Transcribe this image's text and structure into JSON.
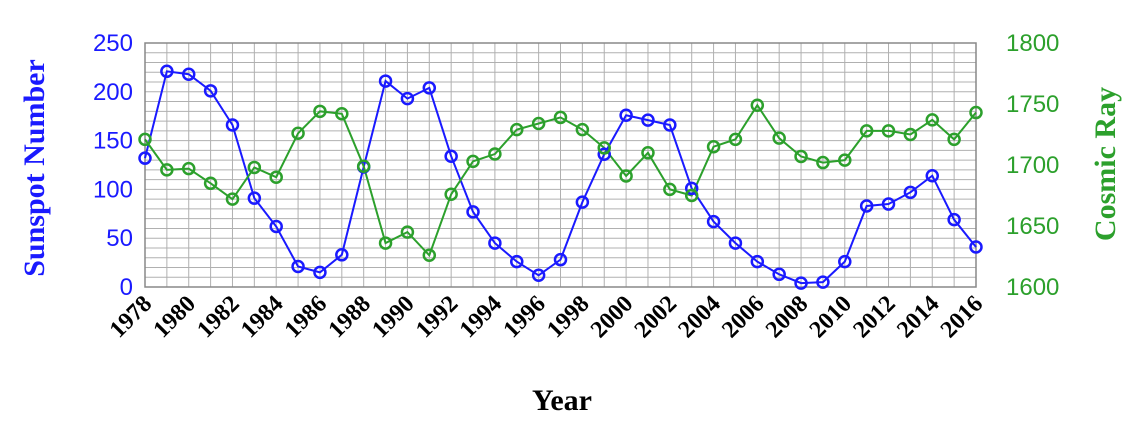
{
  "chart_data": {
    "type": "line",
    "xlabel": "Year",
    "ylabel_left": "Sunspot Number",
    "ylabel_right": "Cosmic Ray",
    "x": [
      1978,
      1979,
      1980,
      1981,
      1982,
      1983,
      1984,
      1985,
      1986,
      1987,
      1988,
      1989,
      1990,
      1991,
      1992,
      1993,
      1994,
      1995,
      1996,
      1997,
      1998,
      1999,
      2000,
      2001,
      2002,
      2003,
      2004,
      2005,
      2006,
      2007,
      2008,
      2009,
      2010,
      2011,
      2012,
      2013,
      2014,
      2015,
      2016
    ],
    "x_tick_labels": [
      "1978",
      "1980",
      "1982",
      "1984",
      "1986",
      "1988",
      "1990",
      "1992",
      "1994",
      "1996",
      "1998",
      "2000",
      "2002",
      "2004",
      "2006",
      "2008",
      "2010",
      "2012",
      "2014",
      "2016"
    ],
    "y_left": {
      "lim": [
        0,
        250
      ],
      "ticks": [
        "0",
        "50",
        "100",
        "150",
        "200",
        "250"
      ],
      "color": "#1a1aff"
    },
    "y_right": {
      "lim": [
        1600,
        1800
      ],
      "ticks": [
        "1600",
        "1650",
        "1700",
        "1750",
        "1800"
      ],
      "color": "#2ca02c"
    },
    "grid": true,
    "series": [
      {
        "axis": "left",
        "color": "#1a1aff",
        "values": [
          132,
          221,
          218,
          201,
          166,
          91,
          62,
          21,
          15,
          33,
          123,
          211,
          193,
          204,
          134,
          77,
          45,
          26,
          12,
          28,
          87,
          136,
          176,
          171,
          166,
          101,
          67,
          45,
          26,
          13,
          4,
          5,
          26,
          83,
          85,
          97,
          114,
          69,
          41
        ]
      },
      {
        "axis": "right",
        "color": "#2ca02c",
        "values": [
          1721,
          1696,
          1697,
          1685,
          1672,
          1698,
          1690,
          1726,
          1744,
          1742,
          1699,
          1636,
          1645,
          1626,
          1676,
          1703,
          1709,
          1729,
          1734,
          1739,
          1729,
          1714,
          1691,
          1710,
          1680,
          1675,
          1715,
          1721,
          1749,
          1722,
          1707,
          1702,
          1704,
          1728,
          1728,
          1725,
          1737,
          1721,
          1743
        ]
      }
    ]
  }
}
